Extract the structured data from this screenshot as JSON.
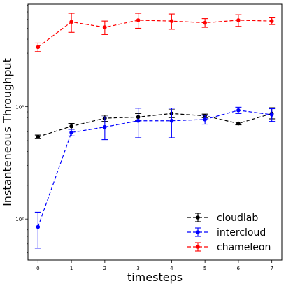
{
  "chart_data": {
    "type": "line",
    "title": "",
    "xlabel": "timesteps",
    "ylabel": "Instanteneous Throughput",
    "x": [
      0,
      1,
      2,
      3,
      4,
      5,
      6,
      7
    ],
    "x_ticks": [
      "0",
      "1",
      "2",
      "3",
      "4",
      "5",
      "6",
      "7"
    ],
    "xlim": [
      -0.3,
      7.3
    ],
    "yscale": "log",
    "ylim": [
      43,
      8200
    ],
    "y_ticks": [
      {
        "value": 100,
        "label": "10²"
      },
      {
        "value": 1000,
        "label": "10³"
      }
    ],
    "grid": false,
    "legend_position": "bottom-right",
    "series": [
      {
        "name": "cloudlab",
        "color": "#000000",
        "values": [
          540,
          670,
          790,
          810,
          870,
          830,
          710,
          870
        ],
        "err_low": [
          20,
          40,
          50,
          60,
          70,
          30,
          20,
          90
        ],
        "err_high": [
          20,
          40,
          50,
          60,
          70,
          30,
          20,
          110
        ]
      },
      {
        "name": "intercloud",
        "color": "#0000ff",
        "values": [
          85,
          590,
          660,
          750,
          750,
          770,
          930,
          850
        ],
        "err_low": [
          30,
          40,
          150,
          220,
          220,
          70,
          60,
          110
        ],
        "err_high": [
          30,
          40,
          150,
          220,
          220,
          70,
          60,
          110
        ]
      },
      {
        "name": "chameleon",
        "color": "#ff0000",
        "values": [
          3400,
          5700,
          5100,
          5900,
          5800,
          5600,
          5900,
          5800
        ],
        "err_low": [
          300,
          1100,
          700,
          900,
          900,
          500,
          700,
          400
        ],
        "err_high": [
          300,
          1100,
          700,
          900,
          900,
          500,
          700,
          400
        ]
      }
    ]
  }
}
